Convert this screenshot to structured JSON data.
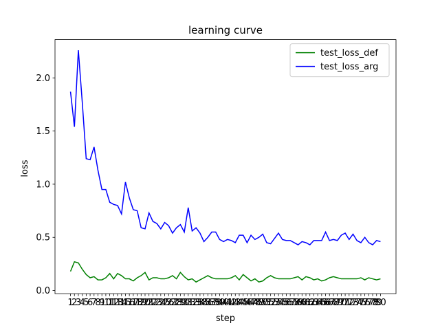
{
  "chart_data": {
    "type": "line",
    "title": "learning curve",
    "x_label": "step",
    "y_label": "loss",
    "categories": [
      "1",
      "2",
      "3",
      "4",
      "5",
      "6",
      "7",
      "8",
      "9",
      "10",
      "11",
      "12",
      "13",
      "14",
      "15",
      "16",
      "17",
      "18",
      "19",
      "20",
      "21",
      "22",
      "23",
      "24",
      "25",
      "26",
      "27",
      "28",
      "29",
      "30",
      "31",
      "32",
      "33",
      "34",
      "35",
      "36",
      "37",
      "38",
      "39",
      "40",
      "41",
      "42",
      "43",
      "44",
      "45",
      "46",
      "47",
      "48",
      "49",
      "50",
      "51",
      "52",
      "53",
      "54",
      "55",
      "56",
      "57",
      "58",
      "59",
      "60",
      "61",
      "62",
      "63",
      "64",
      "65",
      "66",
      "67",
      "68",
      "69",
      "70",
      "71",
      "72",
      "73",
      "74",
      "75",
      "76",
      "77",
      "78",
      "79",
      "80"
    ],
    "series": [
      {
        "name": "test_loss_def",
        "color": "#008000",
        "values": [
          0.18,
          0.27,
          0.26,
          0.2,
          0.15,
          0.12,
          0.13,
          0.1,
          0.1,
          0.12,
          0.16,
          0.11,
          0.16,
          0.14,
          0.11,
          0.11,
          0.09,
          0.12,
          0.14,
          0.17,
          0.1,
          0.12,
          0.12,
          0.11,
          0.11,
          0.12,
          0.14,
          0.11,
          0.17,
          0.13,
          0.1,
          0.11,
          0.08,
          0.1,
          0.12,
          0.14,
          0.12,
          0.11,
          0.11,
          0.11,
          0.11,
          0.12,
          0.14,
          0.1,
          0.15,
          0.12,
          0.09,
          0.11,
          0.08,
          0.09,
          0.12,
          0.14,
          0.12,
          0.11,
          0.11,
          0.11,
          0.11,
          0.12,
          0.13,
          0.1,
          0.13,
          0.12,
          0.1,
          0.11,
          0.09,
          0.1,
          0.12,
          0.13,
          0.12,
          0.11,
          0.11,
          0.11,
          0.11,
          0.11,
          0.12,
          0.1,
          0.12,
          0.11,
          0.1,
          0.11
        ]
      },
      {
        "name": "test_loss_arg",
        "color": "#0000ff",
        "values": [
          1.87,
          1.54,
          2.26,
          1.77,
          1.24,
          1.23,
          1.35,
          1.13,
          0.95,
          0.95,
          0.83,
          0.81,
          0.8,
          0.72,
          1.02,
          0.87,
          0.76,
          0.75,
          0.59,
          0.58,
          0.73,
          0.65,
          0.63,
          0.58,
          0.64,
          0.61,
          0.54,
          0.59,
          0.62,
          0.55,
          0.78,
          0.56,
          0.59,
          0.54,
          0.46,
          0.5,
          0.55,
          0.55,
          0.48,
          0.46,
          0.48,
          0.47,
          0.45,
          0.52,
          0.52,
          0.45,
          0.52,
          0.48,
          0.5,
          0.53,
          0.45,
          0.44,
          0.49,
          0.54,
          0.48,
          0.47,
          0.47,
          0.45,
          0.43,
          0.46,
          0.45,
          0.43,
          0.47,
          0.47,
          0.47,
          0.55,
          0.47,
          0.48,
          0.47,
          0.52,
          0.54,
          0.48,
          0.53,
          0.47,
          0.45,
          0.5,
          0.45,
          0.43,
          0.47,
          0.46
        ]
      }
    ],
    "ylim": [
      -0.03,
      2.36
    ],
    "yticks": [
      {
        "value": 0,
        "label": "0.0"
      },
      0.5,
      {
        "value": 1,
        "label": "1.0"
      },
      1.5,
      {
        "value": 2,
        "label": "2.0"
      }
    ],
    "legend": "upper right"
  }
}
